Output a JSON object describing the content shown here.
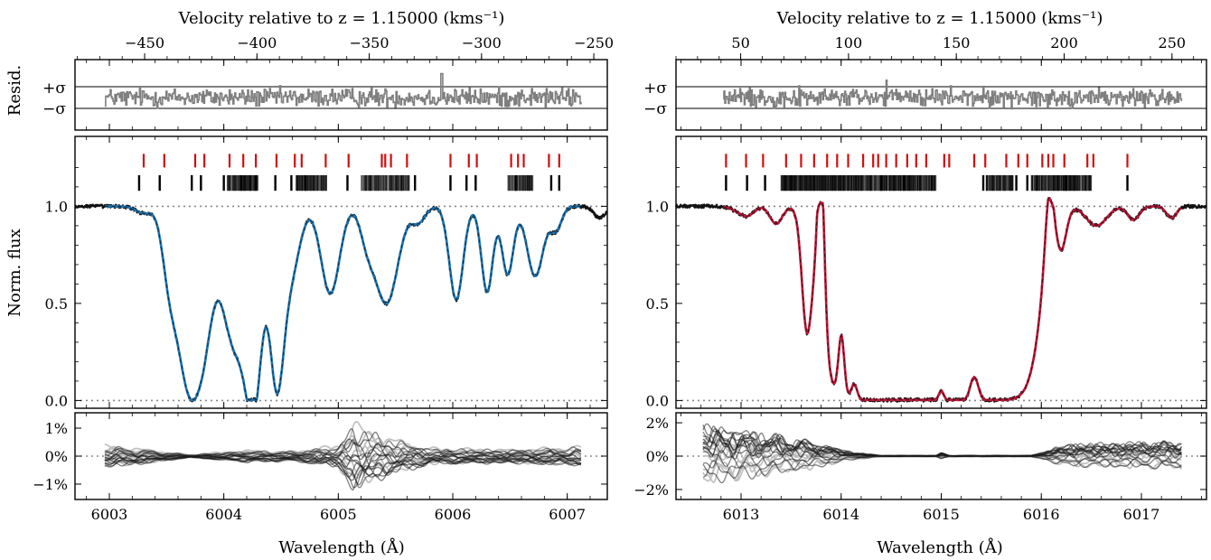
{
  "figure": {
    "shared": {
      "xlabel": "Wavelength (Å)",
      "top_axis_label": "Velocity relative to z = 1.15000 (kms⁻¹)",
      "resid_ylabel": "Resid.",
      "flux_ylabel": "Norm. flux",
      "sigma_plus": "+σ",
      "sigma_minus": "−σ"
    }
  },
  "chart_data": [
    {
      "type": "line",
      "panel": "left",
      "fit_color": "#1f77b4",
      "xlim": [
        6002.7,
        6007.35
      ],
      "x_ticks": [
        "6003",
        "6004",
        "6005",
        "6006",
        "6007"
      ],
      "velocity_lim": [
        -481,
        -244
      ],
      "velocity_ticks": [
        "−450",
        "−400",
        "−350",
        "−300",
        "−250"
      ],
      "flux_ylim": [
        -0.04,
        1.36
      ],
      "flux_ticks": [
        "0.0",
        "0.5",
        "1.0"
      ],
      "flux_profile": {
        "continuum": 1.0,
        "features": [
          {
            "center": 6003.3,
            "depth": 0.035,
            "width": 0.07
          },
          {
            "center": 6003.52,
            "depth": 0.24,
            "width": 0.06
          },
          {
            "center": 6003.7,
            "depth": 0.94,
            "width": 0.11
          },
          {
            "center": 6003.84,
            "depth": 0.3,
            "width": 0.07
          },
          {
            "center": 6004.1,
            "depth": 0.72,
            "width": 0.12
          },
          {
            "center": 6004.27,
            "depth": 0.8,
            "width": 0.07
          },
          {
            "center": 6004.46,
            "depth": 0.82,
            "width": 0.06
          },
          {
            "center": 6004.58,
            "depth": 0.35,
            "width": 0.08
          },
          {
            "center": 6004.93,
            "depth": 0.45,
            "width": 0.08
          },
          {
            "center": 6005.42,
            "depth": 0.5,
            "width": 0.1
          },
          {
            "center": 6005.25,
            "depth": 0.14,
            "width": 0.06
          },
          {
            "center": 6005.7,
            "depth": 0.08,
            "width": 0.06
          },
          {
            "center": 6006.03,
            "depth": 0.48,
            "width": 0.06
          },
          {
            "center": 6006.3,
            "depth": 0.44,
            "width": 0.05
          },
          {
            "center": 6006.48,
            "depth": 0.35,
            "width": 0.05
          },
          {
            "center": 6006.72,
            "depth": 0.36,
            "width": 0.07
          },
          {
            "center": 6006.9,
            "depth": 0.12,
            "width": 0.05
          },
          {
            "center": 6007.28,
            "depth": 0.06,
            "width": 0.05
          }
        ]
      },
      "red_ticks_x": [
        6003.3,
        6003.48,
        6003.75,
        6003.83,
        6004.05,
        6004.17,
        6004.28,
        6004.46,
        6004.62,
        6004.68,
        6004.89,
        6005.09,
        6005.38,
        6005.41,
        6005.46,
        6005.6,
        6005.98,
        6006.14,
        6006.21,
        6006.51,
        6006.57,
        6006.62,
        6006.84,
        6006.93
      ],
      "black_ticks_x": [
        6003.26,
        6003.44,
        6003.72,
        6003.8,
        6004.0,
        6004.15,
        6004.28,
        6004.45,
        6004.59,
        6004.71,
        6005.08,
        6005.67,
        6005.98,
        6006.12,
        6006.2,
        6006.55,
        6006.86,
        6006.93
      ],
      "black_tick_bands": [
        [
          6004.03,
          6004.3
        ],
        [
          6004.63,
          6004.9
        ],
        [
          6005.2,
          6005.62
        ],
        [
          6006.48,
          6006.7
        ]
      ],
      "resid_x_range": [
        6002.96,
        6007.12
      ],
      "resid_amplitude": 0.5,
      "resid_outlier": {
        "x": 6005.9,
        "y": 2.2
      },
      "pct_ylim": [
        -1.55,
        1.55
      ],
      "pct_ticks": [
        "1%",
        "0%",
        "−1%"
      ],
      "pct_tick_values": [
        1,
        0,
        -1
      ],
      "pct_x_range": [
        6002.96,
        6007.12
      ],
      "pct_envelope": [
        {
          "x": 6003.0,
          "amp": 0.4
        },
        {
          "x": 6003.4,
          "amp": 0.22
        },
        {
          "x": 6003.7,
          "amp": 0.05
        },
        {
          "x": 6004.2,
          "amp": 0.22
        },
        {
          "x": 6004.6,
          "amp": 0.18
        },
        {
          "x": 6005.0,
          "amp": 0.4
        },
        {
          "x": 6005.13,
          "amp": 1.25
        },
        {
          "x": 6005.4,
          "amp": 0.75
        },
        {
          "x": 6005.8,
          "amp": 0.3
        },
        {
          "x": 6006.5,
          "amp": 0.25
        },
        {
          "x": 6007.12,
          "amp": 0.35
        }
      ]
    },
    {
      "type": "line",
      "panel": "right",
      "fit_color": "#c0193a",
      "xlim": [
        6012.35,
        6017.65
      ],
      "x_ticks": [
        "6013",
        "6014",
        "6015",
        "6016",
        "6017"
      ],
      "velocity_lim": [
        20,
        266
      ],
      "velocity_ticks": [
        "50",
        "100",
        "150",
        "200",
        "250"
      ],
      "flux_ylim": [
        -0.04,
        1.36
      ],
      "flux_ticks": [
        "0.0",
        "0.5",
        "1.0"
      ],
      "flux_profile": {
        "continuum": 1.0,
        "features": [
          {
            "center": 6013.0,
            "depth": 0.03,
            "width": 0.08
          },
          {
            "center": 6013.08,
            "depth": 0.03,
            "width": 0.06
          },
          {
            "center": 6013.35,
            "depth": 0.09,
            "width": 0.06
          },
          {
            "center": 6013.66,
            "depth": 0.62,
            "width": 0.05
          },
          {
            "center": 6013.92,
            "depth": 0.3,
            "width": 0.05
          },
          {
            "center": 6016.2,
            "depth": 0.2,
            "width": 0.05
          },
          {
            "center": 6016.55,
            "depth": 0.1,
            "width": 0.1
          },
          {
            "center": 6016.92,
            "depth": 0.07,
            "width": 0.06
          },
          {
            "center": 6017.3,
            "depth": 0.06,
            "width": 0.05
          }
        ],
        "saturated_trough": {
          "start": 6013.8,
          "end": 6016.0,
          "edge_width": 0.06
        },
        "trough_steps": [
          {
            "center": 6013.8,
            "height": 0.76,
            "width": 0.035
          },
          {
            "center": 6014.0,
            "height": 0.33,
            "width": 0.03
          },
          {
            "center": 6014.13,
            "height": 0.08,
            "width": 0.03
          },
          {
            "center": 6015.0,
            "height": 0.05,
            "width": 0.025
          },
          {
            "center": 6015.33,
            "height": 0.12,
            "width": 0.04
          },
          {
            "center": 6016.08,
            "height": 0.3,
            "width": 0.04
          }
        ]
      },
      "red_ticks_x": [
        6012.85,
        6013.05,
        6013.22,
        6013.45,
        6013.6,
        6013.73,
        6013.86,
        6013.96,
        6014.07,
        6014.22,
        6014.32,
        6014.37,
        6014.45,
        6014.55,
        6014.66,
        6014.75,
        6014.85,
        6015.03,
        6015.08,
        6015.33,
        6015.44,
        6015.65,
        6015.77,
        6015.86,
        6016.01,
        6016.07,
        6016.12,
        6016.23,
        6016.46,
        6016.52,
        6016.86
      ],
      "black_ticks_x": [
        6012.85,
        6013.06,
        6013.24,
        6014.4,
        6014.63,
        6015.42,
        6015.75,
        6015.86,
        6016.25,
        6016.86
      ],
      "black_tick_bands": [
        [
          6013.4,
          6014.3
        ],
        [
          6014.3,
          6014.95
        ],
        [
          6015.45,
          6015.72
        ],
        [
          6015.9,
          6016.5
        ]
      ],
      "resid_x_range": [
        6012.82,
        6017.4
      ],
      "resid_amplitude": 0.5,
      "resid_outlier": {
        "x": 6014.45,
        "y": 1.6
      },
      "pct_ylim": [
        -2.6,
        2.6
      ],
      "pct_ticks": [
        "2%",
        "0%",
        "−2%"
      ],
      "pct_tick_values": [
        2,
        0,
        -2
      ],
      "pct_x_range": [
        6012.62,
        6017.4
      ],
      "pct_envelope": [
        {
          "x": 6012.62,
          "amp": 1.9
        },
        {
          "x": 6013.2,
          "amp": 1.4
        },
        {
          "x": 6013.7,
          "amp": 0.9
        },
        {
          "x": 6014.1,
          "amp": 0.25
        },
        {
          "x": 6014.4,
          "amp": 0.04
        },
        {
          "x": 6014.95,
          "amp": 0.04
        },
        {
          "x": 6015.0,
          "amp": 0.22
        },
        {
          "x": 6015.08,
          "amp": 0.04
        },
        {
          "x": 6015.9,
          "amp": 0.04
        },
        {
          "x": 6016.25,
          "amp": 0.7
        },
        {
          "x": 6017.4,
          "amp": 0.9
        }
      ]
    }
  ]
}
